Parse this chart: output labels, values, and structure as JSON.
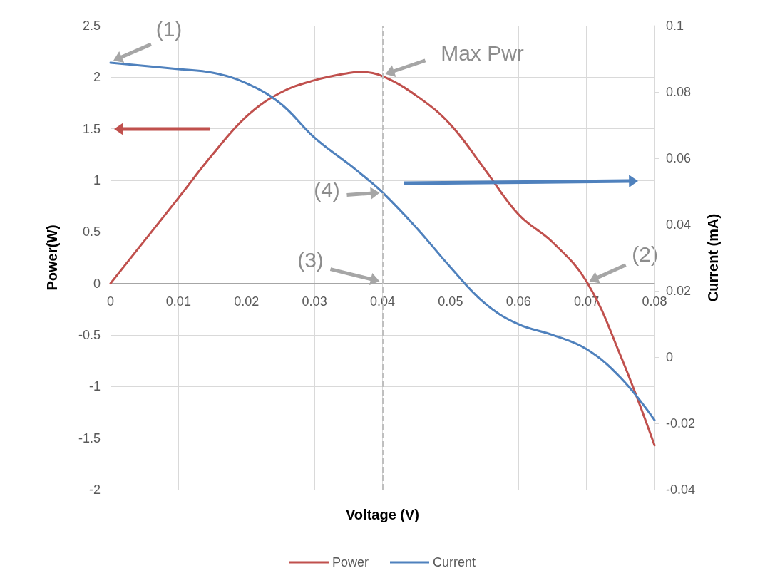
{
  "chart_data": {
    "type": "line",
    "xlabel": "Voltage (V)",
    "ylabel": "Power(W)",
    "y2label": "Current (mA)",
    "x": [
      0,
      0.01,
      0.015,
      0.02,
      0.025,
      0.03,
      0.035,
      0.037,
      0.04,
      0.045,
      0.05,
      0.055,
      0.06,
      0.065,
      0.07,
      0.075,
      0.08
    ],
    "series": [
      {
        "name": "Power",
        "color": "#c0504d",
        "values": [
          0,
          0.83,
          1.25,
          1.62,
          1.85,
          1.97,
          2.04,
          2.05,
          2.01,
          1.82,
          1.54,
          1.11,
          0.67,
          0.4,
          0.02,
          -0.7,
          -1.57
        ]
      },
      {
        "name": "Current",
        "color": "#4f81bd",
        "axis": "y2",
        "values": [
          0.0888,
          0.0869,
          0.0858,
          0.0826,
          0.0765,
          0.0662,
          0.0583,
          0.055,
          0.0497,
          0.039,
          0.0271,
          0.0163,
          0.0099,
          0.0067,
          0.0024,
          -0.0062,
          -0.019
        ]
      }
    ],
    "xlim": [
      0,
      0.08
    ],
    "xticks": [
      0,
      0.01,
      0.02,
      0.03,
      0.04,
      0.05,
      0.06,
      0.07,
      0.08
    ],
    "ylim": [
      -2,
      2.5
    ],
    "yticks": [
      -2,
      -1.5,
      -1,
      -0.5,
      0,
      0.5,
      1,
      1.5,
      2,
      2.5
    ],
    "y2lim": [
      -0.04,
      0.1
    ],
    "y2ticks": [
      -0.04,
      -0.02,
      0,
      0.02,
      0.04,
      0.06,
      0.08,
      0.1
    ],
    "ref_lines": [
      {
        "axis": "x",
        "value": 0.04,
        "color": "#bfbfbf",
        "line_style": "dashed"
      }
    ],
    "annotations": [
      {
        "text": "(1)",
        "x": 0,
        "y": 2.14
      },
      {
        "text": "(2)",
        "x": 0.07,
        "y": 0
      },
      {
        "text": "(3)",
        "x": 0.04,
        "y": 0
      },
      {
        "text": "(4)",
        "x": 0.04,
        "y": 0.88
      },
      {
        "text": "Max Pwr",
        "x": 0.04,
        "y": 2.01
      }
    ],
    "grid": true,
    "legend": "bottom",
    "marker": "none",
    "line_style": "solid"
  }
}
